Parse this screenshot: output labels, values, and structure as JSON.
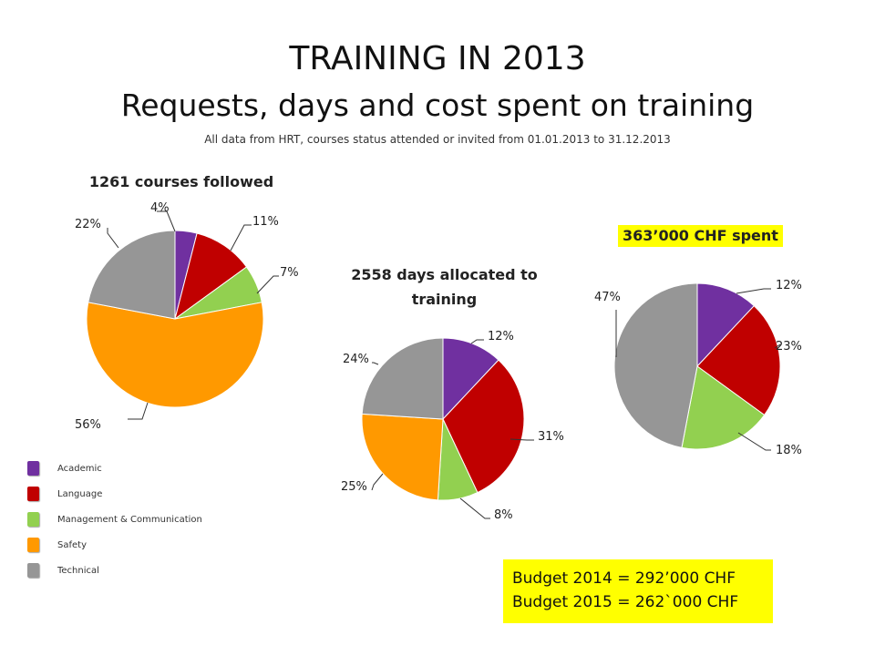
{
  "header": {
    "title_line1": "TRAINING IN 2013",
    "title_line2": "Requests, days and cost spent on training",
    "subtitle": "All data from HRT, courses status attended or invited from 01.01.2013 to 31.12.2013"
  },
  "legend": [
    {
      "label": "Academic",
      "color": "#7030a0"
    },
    {
      "label": "Language",
      "color": "#c00000"
    },
    {
      "label": "Management & Communication",
      "color": "#92d050"
    },
    {
      "label": "Safety",
      "color": "#ff9900"
    },
    {
      "label": "Technical",
      "color": "#969696"
    }
  ],
  "budget": {
    "line1": "Budget 2014 = 292’000 CHF",
    "line2": "Budget 2015 = 262`000 CHF"
  },
  "chart_data": [
    {
      "type": "pie",
      "title": "1261 courses followed",
      "title_highlight": false,
      "categories": [
        "Academic",
        "Language",
        "Management & Communication",
        "Safety",
        "Technical"
      ],
      "values": [
        4,
        11,
        7,
        56,
        22
      ],
      "labels": [
        "4%",
        "11%",
        "7%",
        "56%",
        "22%"
      ],
      "colors": [
        "#7030a0",
        "#c00000",
        "#92d050",
        "#ff9900",
        "#969696"
      ]
    },
    {
      "type": "pie",
      "title": "2558 days allocated to training",
      "title_highlight": false,
      "categories": [
        "Academic",
        "Language",
        "Management & Communication",
        "Safety",
        "Technical"
      ],
      "values": [
        12,
        31,
        8,
        25,
        24
      ],
      "labels": [
        "12%",
        "31%",
        "8%",
        "25%",
        "24%"
      ],
      "colors": [
        "#7030a0",
        "#c00000",
        "#92d050",
        "#ff9900",
        "#969696"
      ]
    },
    {
      "type": "pie",
      "title": "363’000 CHF spent",
      "title_highlight": true,
      "categories": [
        "Academic",
        "Language",
        "Management & Communication",
        "Technical"
      ],
      "values": [
        12,
        23,
        18,
        47
      ],
      "labels": [
        "12%",
        "23%",
        "18%",
        "47%"
      ],
      "colors": [
        "#7030a0",
        "#c00000",
        "#92d050",
        "#969696"
      ]
    }
  ]
}
